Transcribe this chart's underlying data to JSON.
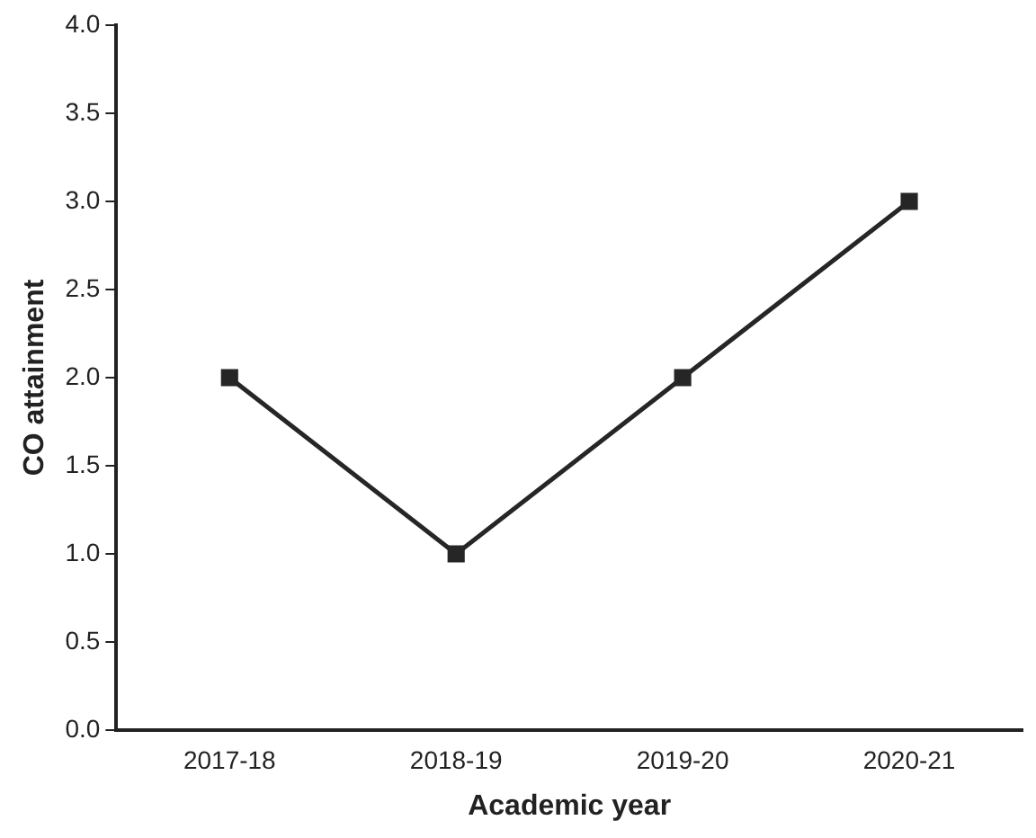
{
  "chart_data": {
    "type": "line",
    "xlabel": "Academic year",
    "ylabel": "CO attainment",
    "categories": [
      "2017-18",
      "2018-19",
      "2019-20",
      "2020-21"
    ],
    "series": [
      {
        "color": "#262626",
        "values": [
          2,
          1,
          2,
          3
        ]
      }
    ],
    "ylim": [
      0,
      4
    ],
    "yticks": [
      {
        "value": 0,
        "label": "0.0"
      },
      {
        "value": 0.5,
        "label": "0.5"
      },
      {
        "value": 1,
        "label": "1.0"
      },
      {
        "value": 1.5,
        "label": "1.5"
      },
      {
        "value": 2,
        "label": "2.0"
      },
      {
        "value": 2.5,
        "label": "2.5"
      },
      {
        "value": 3,
        "label": "3.0"
      },
      {
        "value": 3.5,
        "label": "3.5"
      },
      {
        "value": 4,
        "label": "4.0"
      }
    ],
    "grid": false,
    "legend": false,
    "marker": "square",
    "line_style": "solid"
  }
}
